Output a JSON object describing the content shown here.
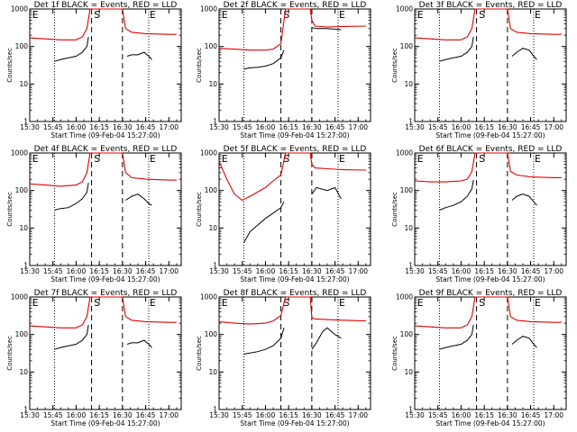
{
  "chart_data": {
    "type": "line",
    "layout": "3x3 grid",
    "y_scale": "log",
    "ylim": [
      1,
      1000
    ],
    "xlim": [
      "15:30",
      "17:08"
    ],
    "y_tick_labels": [
      "1",
      "10",
      "100",
      "1000"
    ],
    "x_tick_labels": [
      "15:30",
      "15:45",
      "16:00",
      "16:15",
      "16:30",
      "16:45",
      "17:00"
    ],
    "xlabel": "Start Time (09-Feb-04 15:27:00)",
    "ylabel": "Counts/sec",
    "markers": {
      "dotted_x": [
        "15:46",
        "16:47"
      ],
      "dashed_x": [
        "16:10",
        "16:30"
      ],
      "labels": [
        {
          "text": "E",
          "x": "15:31"
        },
        {
          "text": "S",
          "x": "16:11"
        },
        {
          "text": "E",
          "x": "16:47"
        }
      ]
    },
    "series_colors": {
      "events": "#000000",
      "lld": "#e00000"
    },
    "panels": [
      {
        "title": "Det 1f BLACK = Events, RED = LLD",
        "events": {
          "x": [
            "15:46",
            "15:50",
            "15:55",
            "16:00",
            "16:04",
            "16:07",
            "16:08"
          ],
          "y": [
            40,
            45,
            50,
            55,
            70,
            100,
            180
          ]
        },
        "events2": {
          "x": [
            "16:33",
            "16:36",
            "16:40",
            "16:44",
            "16:47",
            "16:49"
          ],
          "y": [
            55,
            60,
            60,
            70,
            55,
            45
          ]
        },
        "lld": {
          "x": [
            "15:30",
            "15:40",
            "15:50",
            "16:00",
            "16:04",
            "16:07",
            "16:09",
            "16:30",
            "16:32",
            "16:36",
            "16:45",
            "17:00",
            "17:05"
          ],
          "y": [
            170,
            160,
            150,
            150,
            180,
            300,
            1200,
            1200,
            300,
            240,
            220,
            210,
            210
          ]
        }
      },
      {
        "title": "Det 2f BLACK = Events, RED = LLD",
        "events": {
          "x": [
            "15:46",
            "15:50",
            "15:55",
            "16:00",
            "16:05",
            "16:10",
            "16:12"
          ],
          "y": [
            25,
            27,
            28,
            30,
            35,
            50,
            80
          ]
        },
        "events2": {
          "x": [
            "16:30",
            "16:33",
            "16:40",
            "16:45",
            "16:49"
          ],
          "y": [
            320,
            300,
            300,
            290,
            280
          ]
        },
        "lld": {
          "x": [
            "15:30",
            "15:40",
            "15:50",
            "16:00",
            "16:05",
            "16:10",
            "16:13",
            "16:29",
            "16:30",
            "16:32",
            "16:40",
            "16:50",
            "17:05"
          ],
          "y": [
            90,
            85,
            80,
            80,
            85,
            120,
            1200,
            1200,
            500,
            350,
            330,
            340,
            350
          ]
        }
      },
      {
        "title": "Det 3f BLACK = Events, RED = LLD",
        "events": {
          "x": [
            "15:46",
            "15:50",
            "15:55",
            "16:00",
            "16:04",
            "16:07",
            "16:08"
          ],
          "y": [
            40,
            45,
            50,
            55,
            70,
            100,
            180
          ]
        },
        "events2": {
          "x": [
            "16:33",
            "16:36",
            "16:40",
            "16:44",
            "16:47",
            "16:49"
          ],
          "y": [
            55,
            70,
            90,
            80,
            55,
            45
          ]
        },
        "lld": {
          "x": [
            "15:30",
            "15:40",
            "15:50",
            "16:00",
            "16:04",
            "16:07",
            "16:09",
            "16:30",
            "16:32",
            "16:36",
            "16:45",
            "17:00",
            "17:05"
          ],
          "y": [
            170,
            160,
            150,
            150,
            180,
            300,
            1200,
            1200,
            300,
            240,
            220,
            210,
            210
          ]
        }
      },
      {
        "title": "Det 4f BLACK = Events, RED = LLD",
        "events": {
          "x": [
            "15:46",
            "15:50",
            "15:55",
            "16:00",
            "16:04",
            "16:07",
            "16:08"
          ],
          "y": [
            30,
            33,
            35,
            45,
            60,
            90,
            160
          ]
        },
        "events2": {
          "x": [
            "16:32",
            "16:36",
            "16:40",
            "16:44",
            "16:47",
            "16:49"
          ],
          "y": [
            55,
            70,
            80,
            60,
            45,
            40
          ]
        },
        "lld": {
          "x": [
            "15:30",
            "15:40",
            "15:50",
            "16:00",
            "16:04",
            "16:07",
            "16:09",
            "16:30",
            "16:32",
            "16:36",
            "16:45",
            "17:00",
            "17:05"
          ],
          "y": [
            150,
            140,
            130,
            140,
            170,
            300,
            1200,
            1200,
            300,
            220,
            200,
            190,
            190
          ]
        }
      },
      {
        "title": "Det 5f BLACK = Events, RED = LLD",
        "events": {
          "x": [
            "15:46",
            "15:50",
            "15:55",
            "16:00",
            "16:05",
            "16:10",
            "16:12"
          ],
          "y": [
            4,
            8,
            12,
            18,
            25,
            35,
            50
          ]
        },
        "events2": {
          "x": [
            "16:30",
            "16:33",
            "16:40",
            "16:45",
            "16:49"
          ],
          "y": [
            80,
            120,
            100,
            120,
            60
          ]
        },
        "lld": {
          "x": [
            "15:30",
            "15:35",
            "15:40",
            "15:45",
            "15:50",
            "16:00",
            "16:05",
            "16:10",
            "16:13",
            "16:29",
            "16:30",
            "16:32",
            "16:40",
            "16:50",
            "17:05"
          ],
          "y": [
            600,
            200,
            80,
            55,
            70,
            120,
            180,
            260,
            1200,
            1200,
            500,
            400,
            380,
            360,
            350
          ]
        }
      },
      {
        "title": "Det 6f BLACK = Events, RED = LLD",
        "events": {
          "x": [
            "15:46",
            "15:50",
            "15:55",
            "16:00",
            "16:04",
            "16:07",
            "16:08"
          ],
          "y": [
            30,
            35,
            40,
            50,
            70,
            110,
            190
          ]
        },
        "events2": {
          "x": [
            "16:33",
            "16:36",
            "16:40",
            "16:44",
            "16:47",
            "16:49"
          ],
          "y": [
            55,
            70,
            80,
            70,
            50,
            40
          ]
        },
        "lld": {
          "x": [
            "15:30",
            "15:40",
            "15:50",
            "16:00",
            "16:04",
            "16:07",
            "16:09",
            "16:30",
            "16:32",
            "16:36",
            "16:45",
            "17:00",
            "17:05"
          ],
          "y": [
            180,
            170,
            170,
            180,
            200,
            320,
            1200,
            1200,
            320,
            260,
            230,
            220,
            220
          ]
        }
      },
      {
        "title": "Det 7f BLACK = Events, RED = LLD",
        "events": {
          "x": [
            "15:46",
            "15:50",
            "15:55",
            "16:00",
            "16:04",
            "16:07",
            "16:08"
          ],
          "y": [
            40,
            45,
            50,
            55,
            70,
            100,
            180
          ]
        },
        "events2": {
          "x": [
            "16:33",
            "16:36",
            "16:40",
            "16:44",
            "16:47",
            "16:49"
          ],
          "y": [
            55,
            60,
            60,
            70,
            55,
            45
          ]
        },
        "lld": {
          "x": [
            "15:30",
            "15:40",
            "15:50",
            "16:00",
            "16:04",
            "16:07",
            "16:09",
            "16:30",
            "16:32",
            "16:36",
            "16:45",
            "17:00",
            "17:05"
          ],
          "y": [
            170,
            160,
            150,
            150,
            180,
            300,
            1200,
            1200,
            300,
            240,
            220,
            210,
            210
          ]
        }
      },
      {
        "title": "Det 8f BLACK = Events, RED = LLD",
        "events": {
          "x": [
            "15:46",
            "15:50",
            "15:55",
            "16:00",
            "16:05",
            "16:10",
            "16:12"
          ],
          "y": [
            30,
            32,
            35,
            40,
            50,
            80,
            150
          ]
        },
        "events2": {
          "x": [
            "16:30",
            "16:33",
            "16:37",
            "16:40",
            "16:45",
            "16:49"
          ],
          "y": [
            40,
            60,
            120,
            150,
            100,
            80
          ]
        },
        "lld": {
          "x": [
            "15:30",
            "15:40",
            "15:50",
            "16:00",
            "16:05",
            "16:10",
            "16:13",
            "16:29",
            "16:30",
            "16:32",
            "16:40",
            "16:50",
            "17:05"
          ],
          "y": [
            220,
            200,
            190,
            200,
            230,
            320,
            1200,
            1200,
            280,
            260,
            250,
            240,
            230
          ]
        }
      },
      {
        "title": "Det 9f BLACK = Events, RED = LLD",
        "events": {
          "x": [
            "15:46",
            "15:50",
            "15:55",
            "16:00",
            "16:04",
            "16:07",
            "16:08"
          ],
          "y": [
            40,
            45,
            50,
            55,
            70,
            100,
            180
          ]
        },
        "events2": {
          "x": [
            "16:33",
            "16:36",
            "16:40",
            "16:44",
            "16:47",
            "16:49"
          ],
          "y": [
            55,
            70,
            90,
            80,
            55,
            45
          ]
        },
        "lld": {
          "x": [
            "15:30",
            "15:40",
            "15:50",
            "16:00",
            "16:04",
            "16:07",
            "16:09",
            "16:30",
            "16:32",
            "16:36",
            "16:45",
            "17:00",
            "17:05"
          ],
          "y": [
            170,
            160,
            150,
            150,
            180,
            300,
            1200,
            1200,
            300,
            240,
            220,
            210,
            210
          ]
        }
      }
    ]
  }
}
